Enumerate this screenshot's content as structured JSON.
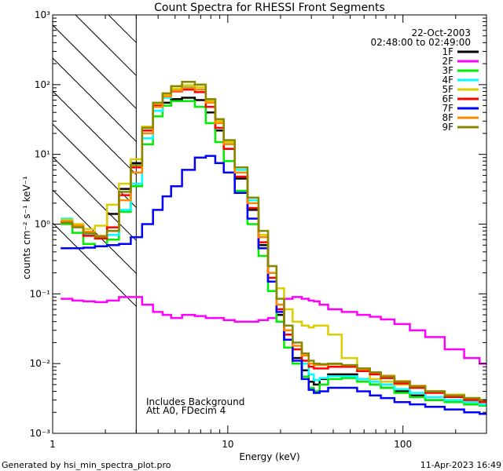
{
  "chart_data": {
    "type": "line",
    "title": "Count Spectra for RHESSI Front Segments",
    "xlabel": "Energy (keV)",
    "ylabel": "counts cm⁻² s⁻¹ keV⁻¹",
    "xscale": "log",
    "yscale": "log",
    "xlim": [
      1,
      300
    ],
    "ylim": [
      0.001,
      1000
    ],
    "x_tick_labels": [
      "1",
      "10",
      "100"
    ],
    "y_tick_labels": [
      "10⁻³",
      "10⁻²",
      "10⁻¹",
      "10⁰",
      "10¹",
      "10²",
      "10³"
    ],
    "date": "22-Oct-2003",
    "time_range": "02:48:00 to 02:49:00",
    "hatched_region_keV": [
      1,
      3
    ],
    "legend_position": "top-right",
    "annotations": [
      "Includes Background",
      "Att A0, FDecim 4"
    ],
    "x": [
      1.2,
      1.4,
      1.6,
      1.9,
      2.2,
      2.6,
      3.0,
      3.5,
      4.0,
      4.5,
      5.0,
      6.0,
      7.0,
      8.0,
      9.0,
      10,
      12,
      14,
      16,
      18,
      20,
      22,
      25,
      28,
      30,
      32,
      35,
      40,
      50,
      60,
      70,
      80,
      100,
      120,
      150,
      200,
      250,
      300
    ],
    "series": [
      {
        "name": "1F",
        "color": "#000000",
        "values": [
          1.05,
          0.92,
          0.72,
          0.66,
          1.4,
          3.2,
          7.5,
          22,
          42,
          55,
          62,
          65,
          60,
          40,
          22,
          12,
          4.5,
          1.6,
          0.5,
          0.15,
          0.05,
          0.022,
          0.012,
          0.008,
          0.0055,
          0.005,
          0.006,
          0.007,
          0.007,
          0.006,
          0.005,
          0.0045,
          0.004,
          0.0035,
          0.003,
          0.0028,
          0.0026,
          0.0025
        ]
      },
      {
        "name": "2F",
        "color": "#ff00ff",
        "values": [
          0.085,
          0.08,
          0.078,
          0.076,
          0.08,
          0.09,
          0.09,
          0.07,
          0.055,
          0.05,
          0.045,
          0.05,
          0.048,
          0.045,
          0.045,
          0.042,
          0.04,
          0.04,
          0.042,
          0.045,
          0.06,
          0.085,
          0.09,
          0.085,
          0.08,
          0.078,
          0.07,
          0.06,
          0.055,
          0.05,
          0.047,
          0.043,
          0.037,
          0.03,
          0.024,
          0.016,
          0.012,
          0.01
        ]
      },
      {
        "name": "3F",
        "color": "#00ee00",
        "values": [
          1.0,
          0.75,
          0.52,
          0.48,
          0.6,
          1.5,
          3.5,
          14,
          35,
          50,
          58,
          58,
          48,
          28,
          15,
          8,
          3,
          1.0,
          0.35,
          0.11,
          0.04,
          0.017,
          0.01,
          0.0065,
          0.0045,
          0.004,
          0.005,
          0.006,
          0.0062,
          0.0055,
          0.005,
          0.0045,
          0.0038,
          0.0033,
          0.003,
          0.0028,
          0.0026,
          0.0025
        ]
      },
      {
        "name": "4F",
        "color": "#00ffff",
        "values": [
          1.2,
          0.95,
          0.72,
          0.62,
          0.7,
          1.6,
          3.8,
          17,
          42,
          65,
          85,
          95,
          92,
          58,
          30,
          15,
          6,
          2.2,
          0.7,
          0.2,
          0.07,
          0.03,
          0.016,
          0.01,
          0.007,
          0.0058,
          0.0062,
          0.0066,
          0.0066,
          0.006,
          0.0055,
          0.005,
          0.0043,
          0.0038,
          0.0033,
          0.003,
          0.0028,
          0.0026
        ]
      },
      {
        "name": "5F",
        "color": "#ddcc00",
        "values": [
          1.15,
          1.0,
          0.85,
          0.95,
          1.9,
          3.8,
          8.5,
          25,
          52,
          72,
          88,
          98,
          92,
          58,
          30,
          15,
          5.5,
          2.0,
          0.7,
          0.25,
          0.12,
          0.06,
          0.04,
          0.035,
          0.033,
          0.035,
          0.035,
          0.026,
          0.012,
          0.008,
          0.006,
          0.0055,
          0.005,
          0.0045,
          0.004,
          0.0036,
          0.0032,
          0.003
        ]
      },
      {
        "name": "6F",
        "color": "#ff0000",
        "values": [
          1.05,
          0.92,
          0.68,
          0.62,
          0.9,
          2.6,
          6.5,
          22,
          50,
          68,
          80,
          85,
          78,
          48,
          24,
          12,
          4.8,
          1.7,
          0.55,
          0.17,
          0.06,
          0.026,
          0.016,
          0.011,
          0.009,
          0.0085,
          0.0085,
          0.009,
          0.009,
          0.0078,
          0.007,
          0.0062,
          0.0052,
          0.0045,
          0.0038,
          0.0033,
          0.003,
          0.0028
        ]
      },
      {
        "name": "7F",
        "color": "#0000ff",
        "values": [
          0.45,
          0.45,
          0.46,
          0.48,
          0.5,
          0.52,
          0.65,
          1.0,
          1.6,
          2.5,
          3.5,
          6,
          9,
          9.5,
          7.5,
          5.5,
          2.8,
          1.2,
          0.45,
          0.15,
          0.055,
          0.022,
          0.011,
          0.006,
          0.0042,
          0.0038,
          0.004,
          0.0045,
          0.0045,
          0.004,
          0.0035,
          0.0032,
          0.0028,
          0.0026,
          0.0024,
          0.0022,
          0.002,
          0.0019
        ]
      },
      {
        "name": "8F",
        "color": "#ff8800",
        "values": [
          1.1,
          0.95,
          0.78,
          0.68,
          0.8,
          2.2,
          5.5,
          20,
          48,
          68,
          82,
          90,
          85,
          55,
          28,
          14,
          5.5,
          2.0,
          0.65,
          0.2,
          0.07,
          0.03,
          0.018,
          0.013,
          0.01,
          0.0095,
          0.0095,
          0.0098,
          0.0095,
          0.0085,
          0.0075,
          0.0067,
          0.0056,
          0.0048,
          0.004,
          0.0035,
          0.0032,
          0.003
        ]
      },
      {
        "name": "9F",
        "color": "#888800",
        "values": [
          1.05,
          0.9,
          0.74,
          0.66,
          0.8,
          2.9,
          7.0,
          24,
          55,
          75,
          95,
          110,
          100,
          62,
          32,
          16,
          6.5,
          2.4,
          0.8,
          0.25,
          0.085,
          0.035,
          0.02,
          0.014,
          0.011,
          0.01,
          0.0098,
          0.01,
          0.0095,
          0.0085,
          0.0075,
          0.0065,
          0.0055,
          0.0047,
          0.004,
          0.0035,
          0.0032,
          0.003
        ]
      }
    ]
  },
  "footer": {
    "generated_by": "Generated by hsi_min_spectra_plot.pro",
    "timestamp": "11-Apr-2023 16:49"
  }
}
